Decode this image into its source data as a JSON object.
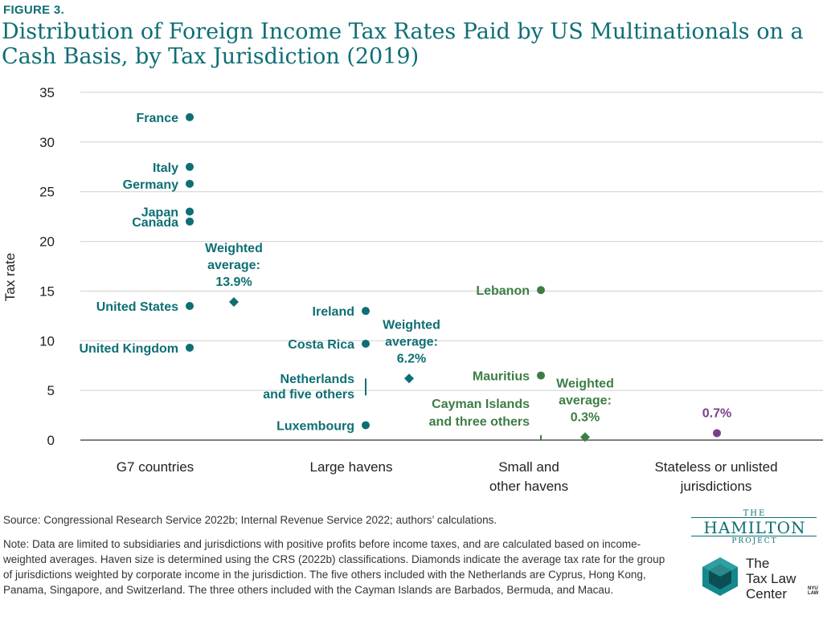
{
  "figure_label": "FIGURE 3.",
  "title": "Distribution of Foreign Income Tax Rates Paid by US Multinationals on a Cash Basis, by Tax Jurisdiction (2019)",
  "colors": {
    "g7": "#0d6f74",
    "large": "#0d6f74",
    "small": "#3d7d45",
    "stateless": "#7b3f8a",
    "grid": "#cfcfcf",
    "axis": "#333333",
    "title": "#0d6f74"
  },
  "chart_data": {
    "type": "scatter",
    "title": "Distribution of Foreign Income Tax Rates Paid by US Multinationals on a Cash Basis, by Tax Jurisdiction (2019)",
    "xlabel": "",
    "ylabel": "Tax rate",
    "ylim": [
      0,
      35
    ],
    "yticks": [
      "0",
      "5",
      "10",
      "15",
      "20",
      "25",
      "30",
      "35"
    ],
    "grid": true,
    "categories": [
      {
        "key": "g7",
        "lines": [
          "G7 countries"
        ]
      },
      {
        "key": "large",
        "lines": [
          "Large havens"
        ]
      },
      {
        "key": "small",
        "lines": [
          "Small and",
          "other havens"
        ]
      },
      {
        "key": "stateless",
        "lines": [
          "Stateless or unlisted",
          "jurisdictions"
        ]
      }
    ],
    "points": [
      {
        "group": "g7",
        "label": "France",
        "value": 32.5
      },
      {
        "group": "g7",
        "label": "Italy",
        "value": 27.5
      },
      {
        "group": "g7",
        "label": "Germany",
        "value": 25.8
      },
      {
        "group": "g7",
        "label": "Japan",
        "value": 23.0
      },
      {
        "group": "g7",
        "label": "Canada",
        "value": 22.0
      },
      {
        "group": "g7",
        "label": "United States",
        "value": 13.5
      },
      {
        "group": "g7",
        "label": "United Kingdom",
        "value": 9.3
      },
      {
        "group": "large",
        "label": "Ireland",
        "value": 13.0
      },
      {
        "group": "large",
        "label": "Costa Rica",
        "value": 9.7
      },
      {
        "group": "large",
        "label": "Luxembourg",
        "value": 1.5
      },
      {
        "group": "small",
        "label": "Lebanon",
        "value": 15.1
      },
      {
        "group": "small",
        "label": "Mauritius",
        "value": 6.5
      }
    ],
    "ranges": [
      {
        "group": "large",
        "label_lines": [
          "Netherlands",
          "and five others"
        ],
        "low": 4.5,
        "high": 6.2
      },
      {
        "group": "small",
        "label_lines": [
          "Cayman Islands",
          "and three others"
        ],
        "low": 0.0,
        "high": 0.5
      }
    ],
    "weighted_averages": [
      {
        "group": "g7",
        "value": 13.9,
        "label_lines": [
          "Weighted",
          "average:",
          "13.9%"
        ]
      },
      {
        "group": "large",
        "value": 6.2,
        "label_lines": [
          "Weighted",
          "average:",
          "6.2%"
        ]
      },
      {
        "group": "small",
        "value": 0.3,
        "label_lines": [
          "Weighted",
          "average:",
          "0.3%"
        ]
      },
      {
        "group": "stateless",
        "value": 0.7,
        "label_lines": [
          "0.7%"
        ]
      }
    ]
  },
  "source": "Source: Congressional Research Service 2022b; Internal Revenue Service 2022; authors’ calculations.",
  "note": "Note: Data are limited to subsidiaries and jurisdictions with positive profits before income taxes, and are calculated based on income-weighted averages. Haven size is determined using the CRS (2022b) classifications. Diamonds indicate the average tax rate for the group of jurisdictions weighted by corporate income in the jurisdiction. The five others included with the Netherlands are Cyprus, Hong Kong, Panama, Singapore, and Switzerland. The three others included with the Cayman Islands are Barbados, Bermuda, and Macau.",
  "logos": {
    "hamilton_the": "THE",
    "hamilton_name": "HAMILTON",
    "hamilton_project": "PROJECT",
    "tax_law_line1": "The",
    "tax_law_line2": "Tax Law",
    "tax_law_line3": "Center",
    "nyu_line1": "NYU",
    "nyu_line2": "LAW"
  }
}
